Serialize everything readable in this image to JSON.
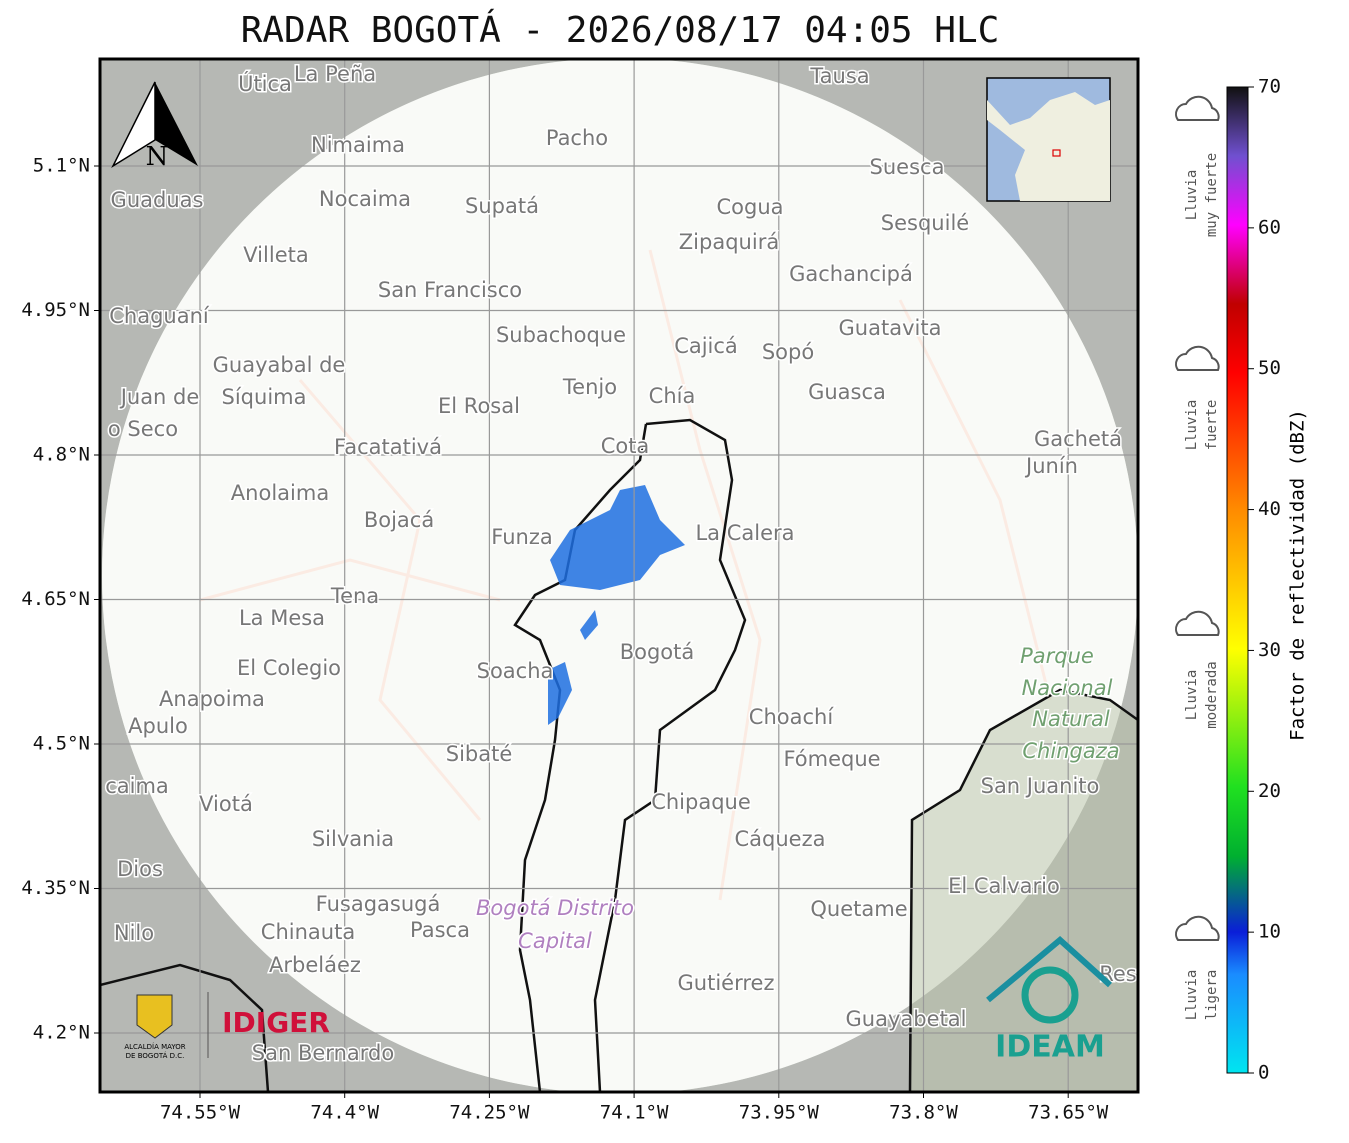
{
  "title": "RADAR BOGOTÁ - 2026/08/17 04:05 HLC",
  "map": {
    "lon_ticks": [
      {
        "value": -74.55,
        "label": "74.55°W"
      },
      {
        "value": -74.4,
        "label": "74.4°W"
      },
      {
        "value": -74.25,
        "label": "74.25°W"
      },
      {
        "value": -74.1,
        "label": "74.1°W"
      },
      {
        "value": -73.95,
        "label": "73.95°W"
      },
      {
        "value": -73.8,
        "label": "73.8°W"
      },
      {
        "value": -73.65,
        "label": "73.65°W"
      }
    ],
    "lat_ticks": [
      {
        "value": 5.1,
        "label": "5.1°N"
      },
      {
        "value": 4.95,
        "label": "4.95°N"
      },
      {
        "value": 4.8,
        "label": "4.8°N"
      },
      {
        "value": 4.65,
        "label": "4.65°N"
      },
      {
        "value": 4.5,
        "label": "4.5°N"
      },
      {
        "value": 4.35,
        "label": "4.35°N"
      },
      {
        "value": 4.2,
        "label": "4.2°N"
      }
    ],
    "north": "N",
    "places": [
      "Útica",
      "La Peña",
      "Tausa",
      "Pacho",
      "Nimaima",
      "Guaduas",
      "Nocaima",
      "Supatá",
      "Cogua",
      "Suesca",
      "Sesquilé",
      "Zipaquirá",
      "Villeta",
      "Gachancipá",
      "San Francisco",
      "Chaguaní",
      "Guatavita",
      "Subachoque",
      "Cajicá",
      "Sopó",
      "Guayabal de",
      "Síquima",
      "Juan de",
      "o Seco",
      "Tenjo",
      "Chía",
      "El Rosal",
      "Guasca",
      "Facatativá",
      "Cota",
      "Gachetá",
      "Junín",
      "Anolaima",
      "Bojacá",
      "Funza",
      "La Calera",
      "Tena",
      "La Mesa",
      "Bogotá",
      "Parque",
      "Nacional",
      "Natural",
      "Chingaza",
      "El Colegio",
      "Soacha",
      "Anapoima",
      "Apulo",
      "Choachí",
      "Sibaté",
      "Fómeque",
      "San Juanito",
      "caima",
      "Viotá",
      "Chipaque",
      "Silvania",
      "Cáqueza",
      "Dios",
      "El Calvario",
      "Fusagasugá",
      "Bogotá Distrito",
      "Capital",
      "Quetame",
      "Nilo",
      "Chinauta",
      "Pasca",
      "Arbeláez",
      "Gutiérrez",
      "Res",
      "Guayabetal",
      "San Bernardo"
    ],
    "logos": {
      "alcaldia": "ALCALDÍA MAYOR",
      "alcaldia2": "DE BOGOTÁ D.C.",
      "idiger": "IDIGER",
      "ideam": "IDEAM"
    }
  },
  "colorbar": {
    "label": "Factor de reflectividad (dBZ)",
    "range": [
      0,
      70
    ],
    "ticks": [
      0,
      10,
      20,
      30,
      40,
      50,
      60,
      70
    ],
    "classes": [
      [
        "Lluvia",
        "muy fuerte"
      ],
      [
        "Lluvia",
        "fuerte"
      ],
      [
        "Lluvia",
        "moderada"
      ],
      [
        "Lluvia",
        "ligera"
      ]
    ]
  }
}
